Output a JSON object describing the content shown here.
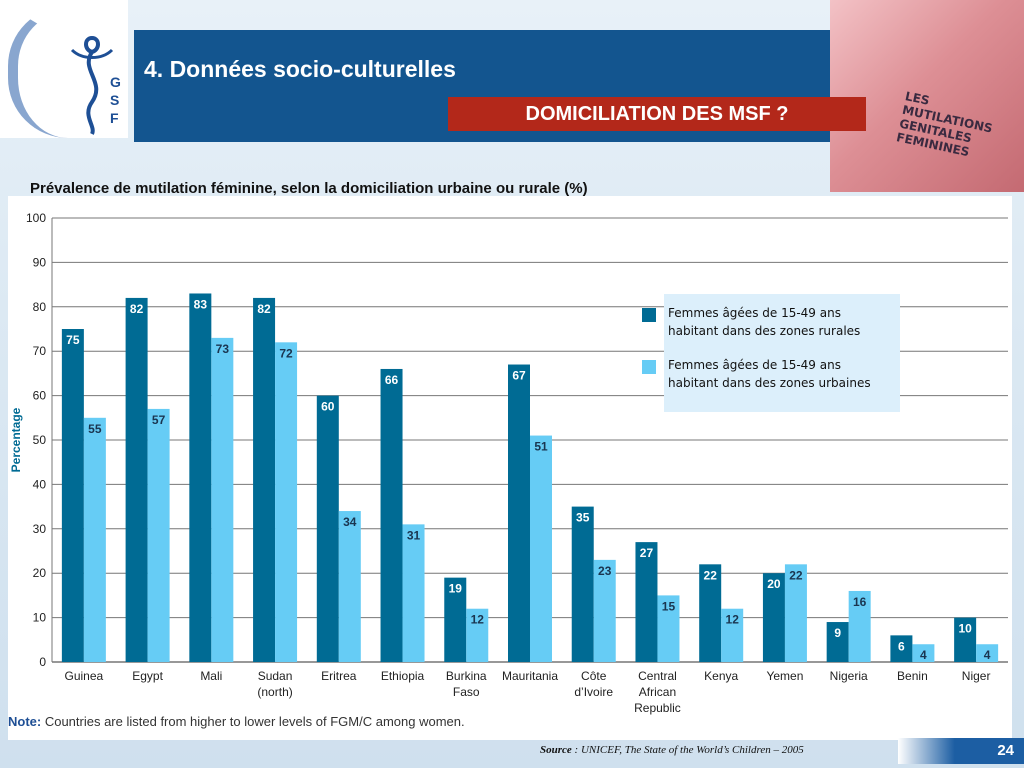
{
  "logo": {
    "letters": [
      "G",
      "S",
      "F"
    ]
  },
  "header": {
    "title": "4. Données socio-culturelles",
    "subtitle": "DOMICILIATION DES  MSF  ?"
  },
  "book": {
    "lines": [
      "LES",
      "MUTILATIONS",
      "GENITALES",
      "FEMININES"
    ]
  },
  "caption": "Prévalence de mutilation féminine, selon la domiciliation urbaine ou rurale (%)",
  "colors": {
    "rural": "#006b94",
    "urban": "#66ccf5"
  },
  "chart_data": {
    "type": "bar",
    "ylabel": "Percentage",
    "ylim": [
      0,
      100
    ],
    "yticks": [
      0,
      10,
      20,
      30,
      40,
      50,
      60,
      70,
      80,
      90,
      100
    ],
    "grid": true,
    "categories": [
      "Guinea",
      "Egypt",
      "Mali",
      "Sudan (north)",
      "Eritrea",
      "Ethiopia",
      "Burkina Faso",
      "Mauritania",
      "Côte d'Ivoire",
      "Central African Republic",
      "Kenya",
      "Yemen",
      "Nigeria",
      "Benin",
      "Niger"
    ],
    "category_lines": [
      [
        "Guinea"
      ],
      [
        "Egypt"
      ],
      [
        "Mali"
      ],
      [
        "Sudan",
        "(north)"
      ],
      [
        "Eritrea"
      ],
      [
        "Ethiopia"
      ],
      [
        "Burkina",
        "Faso"
      ],
      [
        "Mauritania"
      ],
      [
        "Côte",
        "d’Ivoire"
      ],
      [
        "Central",
        "African",
        "Republic"
      ],
      [
        "Kenya"
      ],
      [
        "Yemen"
      ],
      [
        "Nigeria"
      ],
      [
        "Benin"
      ],
      [
        "Niger"
      ]
    ],
    "series": [
      {
        "name": "Femmes âgées de 15-49 ans habitant dans des zones rurales",
        "values": [
          75,
          82,
          83,
          82,
          60,
          66,
          19,
          67,
          35,
          27,
          22,
          20,
          9,
          6,
          10
        ]
      },
      {
        "name": "Femmes âgées de 15-49 ans habitant dans des zones urbaines",
        "values": [
          55,
          57,
          73,
          72,
          34,
          31,
          12,
          51,
          23,
          15,
          12,
          22,
          16,
          4,
          4
        ]
      }
    ],
    "legend": {
      "placement": "top-right",
      "items": [
        {
          "lines": [
            "Femmes âgées de 15-49 ans",
            "habitant dans des zones rurales"
          ]
        },
        {
          "lines": [
            "Femmes âgées de 15-49 ans",
            "habitant dans des zones urbaines"
          ]
        }
      ]
    },
    "note_label": "Note:",
    "note_text": " Countries are listed from higher to lower levels of FGM/C among women."
  },
  "source": {
    "label": "Source",
    "text": " : UNICEF, The State of the World’s Children – 2005"
  },
  "page_number": "24"
}
